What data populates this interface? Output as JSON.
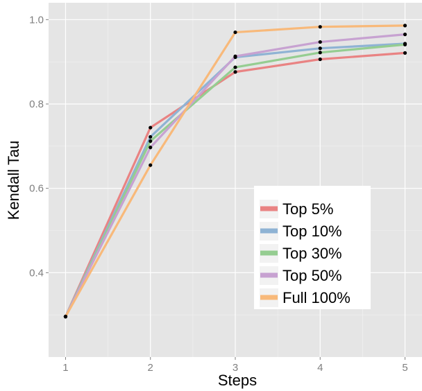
{
  "chart_data": {
    "type": "line",
    "xlabel": "Steps",
    "ylabel": "Kendall Tau",
    "x": [
      1,
      2,
      3,
      4,
      5
    ],
    "xlim": [
      0.8,
      5.2
    ],
    "ylim": [
      0.2,
      1.04
    ],
    "xticks": [
      "1",
      "2",
      "3",
      "4",
      "5"
    ],
    "yticks": [
      "0.4",
      "0.6",
      "0.8",
      "1.0"
    ],
    "ytick_values": [
      0.4,
      0.6,
      0.8,
      1.0
    ],
    "grid": true,
    "legend_position": "right",
    "series": [
      {
        "name": "Top 5%",
        "color": "#e98383",
        "values": [
          0.296,
          0.744,
          0.876,
          0.906,
          0.921
        ]
      },
      {
        "name": "Top 10%",
        "color": "#8fb3d4",
        "values": [
          0.296,
          0.722,
          0.911,
          0.932,
          0.943
        ]
      },
      {
        "name": "Top 30%",
        "color": "#95cd91",
        "values": [
          0.296,
          0.712,
          0.887,
          0.922,
          0.941
        ]
      },
      {
        "name": "Top 50%",
        "color": "#c7a2d1",
        "values": [
          0.296,
          0.697,
          0.913,
          0.947,
          0.965
        ]
      },
      {
        "name": "Full 100%",
        "color": "#f8b97a",
        "values": [
          0.296,
          0.655,
          0.97,
          0.983,
          0.986
        ]
      }
    ]
  }
}
